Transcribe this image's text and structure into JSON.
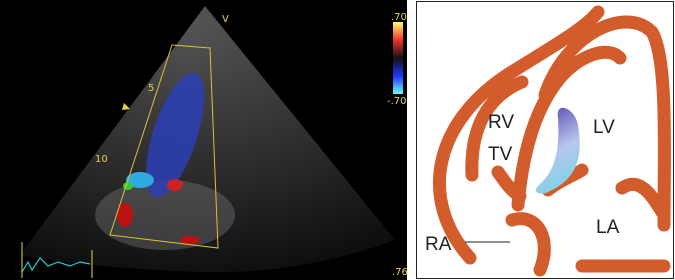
{
  "echo": {
    "sector_marker": "V",
    "scale_top": ".70",
    "scale_bottom": "-.70",
    "depth_marks": [
      "5",
      "10"
    ],
    "corner_value": ".76"
  },
  "diagram": {
    "labels": [
      "RV",
      "LV",
      "TV",
      "LA",
      "RA"
    ]
  }
}
